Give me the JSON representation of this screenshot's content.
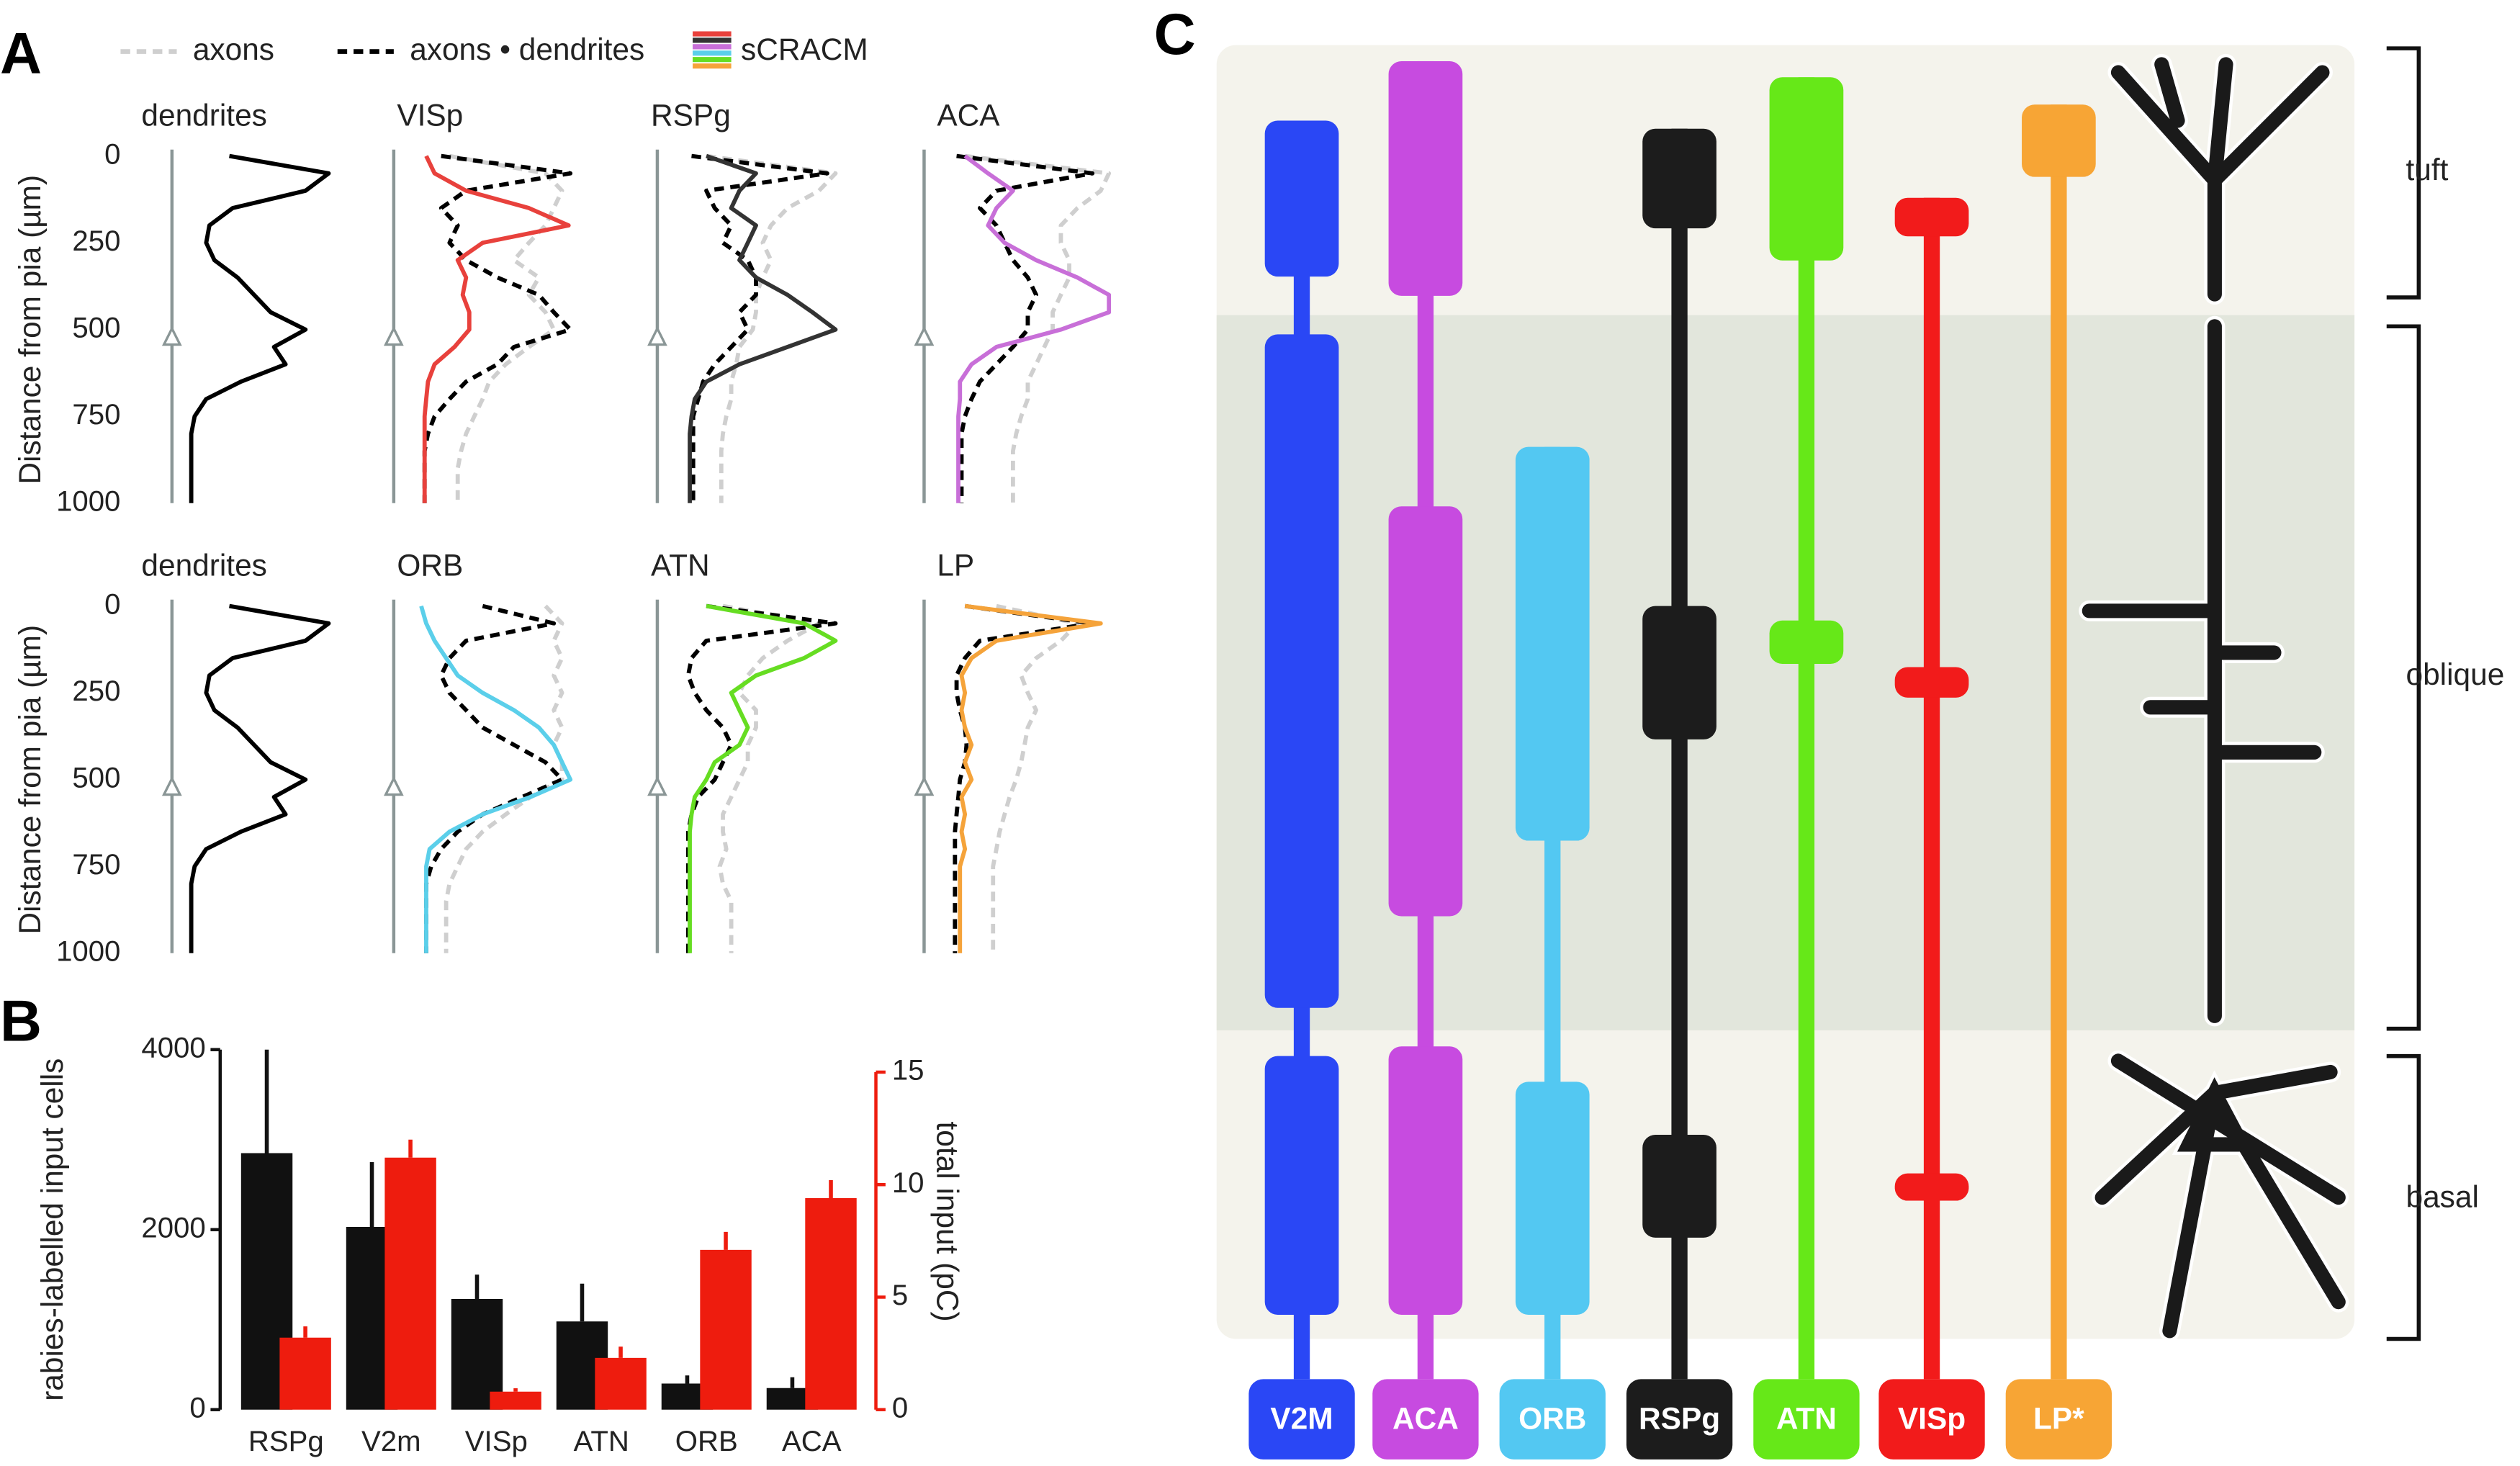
{
  "panel_labels": [
    "A",
    "B",
    "C"
  ],
  "legend": [
    {
      "name": "axons",
      "color": "#cfcfcf",
      "dash": true
    },
    {
      "name": "axons • dendrites",
      "color": "#000000",
      "dash": true
    },
    {
      "name": "sCRACM",
      "colors": [
        "#e8413c",
        "#333333",
        "#c86fd8",
        "#5bcfea",
        "#66dd22",
        "#f5a33a"
      ]
    }
  ],
  "chart_data": [
    {
      "type": "profile",
      "title": "dendrites",
      "title_color": "#333333",
      "xlim": [
        0,
        1
      ],
      "ylim": [
        0,
        1000
      ],
      "yticks": [
        0,
        250,
        500,
        750,
        1000
      ],
      "ylabel": "Distance from pia (µm)",
      "y": [
        0,
        50,
        100,
        150,
        200,
        250,
        300,
        350,
        400,
        450,
        500,
        550,
        600,
        650,
        700,
        750,
        800,
        850,
        900,
        950,
        1000
      ],
      "series": [
        {
          "color": "#000000",
          "dash": false,
          "values": [
            0.23,
            0.83,
            0.69,
            0.25,
            0.11,
            0.09,
            0.14,
            0.28,
            0.38,
            0.48,
            0.69,
            0.5,
            0.57,
            0.3,
            0.09,
            0.02,
            0,
            0,
            0,
            0,
            0
          ]
        }
      ]
    },
    {
      "type": "profile",
      "title": "VISp",
      "title_color": "#e8201c",
      "xlim": [
        0,
        1
      ],
      "ylim": [
        0,
        1000
      ],
      "y": [
        0,
        50,
        100,
        150,
        200,
        250,
        300,
        350,
        400,
        450,
        500,
        550,
        600,
        650,
        700,
        750,
        800,
        850,
        900,
        950,
        1000
      ],
      "series": [
        {
          "color": "#cfcfcf",
          "dash": true,
          "values": [
            0.22,
            0.8,
            0.9,
            0.85,
            0.8,
            0.7,
            0.61,
            0.76,
            0.7,
            0.8,
            0.85,
            0.7,
            0.56,
            0.46,
            0.42,
            0.37,
            0.32,
            0.29,
            0.27,
            0.27,
            0.27
          ]
        },
        {
          "color": "#000000",
          "dash": true,
          "values": [
            0.17,
            0.95,
            0.32,
            0.17,
            0.27,
            0.22,
            0.32,
            0.51,
            0.76,
            0.85,
            0.95,
            0.61,
            0.51,
            0.32,
            0.22,
            0.13,
            0.09,
            0.07,
            0.07,
            0.07,
            0.07
          ]
        },
        {
          "color": "#e8413c",
          "dash": false,
          "values": [
            0.08,
            0.13,
            0.32,
            0.7,
            0.94,
            0.42,
            0.27,
            0.32,
            0.3,
            0.34,
            0.34,
            0.25,
            0.13,
            0.09,
            0.08,
            0.07,
            0.07,
            0.07,
            0.07,
            0.07,
            0.07
          ]
        }
      ]
    },
    {
      "type": "profile",
      "title": "RSPg",
      "title_color": "#222222",
      "xlim": [
        0,
        1
      ],
      "ylim": [
        0,
        1000
      ],
      "y": [
        0,
        50,
        100,
        150,
        200,
        250,
        300,
        350,
        400,
        450,
        500,
        550,
        600,
        650,
        700,
        750,
        800,
        850,
        900,
        950,
        1000
      ],
      "series": [
        {
          "color": "#cfcfcf",
          "dash": true,
          "values": [
            0.18,
            0.96,
            0.86,
            0.67,
            0.57,
            0.52,
            0.57,
            0.52,
            0.48,
            0.48,
            0.46,
            0.38,
            0.36,
            0.33,
            0.33,
            0.3,
            0.28,
            0.27,
            0.27,
            0.27,
            0.27
          ]
        },
        {
          "color": "#000000",
          "dash": true,
          "values": [
            0.09,
            0.91,
            0.18,
            0.23,
            0.33,
            0.28,
            0.43,
            0.48,
            0.48,
            0.38,
            0.43,
            0.33,
            0.23,
            0.16,
            0.13,
            0.1,
            0.1,
            0.1,
            0.1,
            0.1,
            0.1
          ]
        },
        {
          "color": "#333333",
          "dash": false,
          "values": [
            0.18,
            0.48,
            0.38,
            0.33,
            0.48,
            0.43,
            0.38,
            0.48,
            0.67,
            0.82,
            0.96,
            0.67,
            0.38,
            0.18,
            0.11,
            0.09,
            0.08,
            0.08,
            0.08,
            0.08,
            0.08
          ]
        }
      ]
    },
    {
      "type": "profile",
      "title": "ACA",
      "title_color": "#c86fd8",
      "xlim": [
        0,
        1
      ],
      "ylim": [
        0,
        1000
      ],
      "y": [
        0,
        50,
        100,
        150,
        200,
        250,
        300,
        350,
        400,
        450,
        500,
        550,
        600,
        650,
        700,
        750,
        800,
        850,
        900,
        950,
        1000
      ],
      "series": [
        {
          "color": "#cfcfcf",
          "dash": true,
          "values": [
            0.13,
            1,
            0.95,
            0.81,
            0.71,
            0.71,
            0.76,
            0.76,
            0.71,
            0.66,
            0.66,
            0.61,
            0.56,
            0.51,
            0.51,
            0.47,
            0.44,
            0.42,
            0.42,
            0.42,
            0.42
          ]
        },
        {
          "color": "#000000",
          "dash": true,
          "values": [
            0.08,
            0.9,
            0.32,
            0.22,
            0.32,
            0.37,
            0.42,
            0.51,
            0.56,
            0.51,
            0.51,
            0.42,
            0.32,
            0.22,
            0.17,
            0.13,
            0.11,
            0.11,
            0.11,
            0.11,
            0.11
          ]
        },
        {
          "color": "#c86fd8",
          "dash": false,
          "values": [
            0.13,
            0.27,
            0.42,
            0.32,
            0.27,
            0.37,
            0.56,
            0.81,
            1,
            1,
            0.71,
            0.32,
            0.17,
            0.1,
            0.1,
            0.09,
            0.09,
            0.09,
            0.09,
            0.09,
            0.09
          ]
        }
      ]
    },
    {
      "type": "profile",
      "title": "dendrites",
      "title_color": "#333333",
      "xlim": [
        0,
        1
      ],
      "ylim": [
        0,
        1000
      ],
      "yticks": [
        0,
        250,
        500,
        750,
        1000
      ],
      "ylabel": "Distance from pia (µm)",
      "y": [
        0,
        50,
        100,
        150,
        200,
        250,
        300,
        350,
        400,
        450,
        500,
        550,
        600,
        650,
        700,
        750,
        800,
        850,
        900,
        950,
        1000
      ],
      "series": [
        {
          "color": "#000000",
          "dash": false,
          "values": [
            0.23,
            0.83,
            0.69,
            0.25,
            0.11,
            0.09,
            0.14,
            0.28,
            0.38,
            0.48,
            0.69,
            0.5,
            0.57,
            0.3,
            0.09,
            0.02,
            0,
            0,
            0,
            0,
            0
          ]
        }
      ]
    },
    {
      "type": "profile",
      "title": "ORB",
      "title_color": "#4fc6e6",
      "xlim": [
        0,
        1
      ],
      "ylim": [
        0,
        1000
      ],
      "y": [
        0,
        50,
        100,
        150,
        200,
        250,
        300,
        350,
        400,
        450,
        500,
        550,
        600,
        650,
        700,
        750,
        800,
        850,
        900,
        950,
        1000
      ],
      "series": [
        {
          "color": "#cfcfcf",
          "dash": true,
          "values": [
            0.8,
            0.9,
            0.85,
            0.9,
            0.85,
            0.9,
            0.85,
            0.9,
            0.85,
            0.9,
            0.9,
            0.71,
            0.56,
            0.42,
            0.32,
            0.27,
            0.22,
            0.2,
            0.2,
            0.2,
            0.2
          ]
        },
        {
          "color": "#000000",
          "dash": true,
          "values": [
            0.42,
            0.85,
            0.32,
            0.22,
            0.17,
            0.22,
            0.32,
            0.42,
            0.61,
            0.8,
            0.9,
            0.66,
            0.42,
            0.27,
            0.17,
            0.11,
            0.08,
            0.08,
            0.08,
            0.08,
            0.08
          ]
        },
        {
          "color": "#5bcfea",
          "dash": false,
          "values": [
            0.05,
            0.08,
            0.13,
            0.2,
            0.27,
            0.42,
            0.61,
            0.76,
            0.85,
            0.9,
            0.95,
            0.71,
            0.42,
            0.22,
            0.1,
            0.08,
            0.08,
            0.08,
            0.08,
            0.08,
            0.08
          ]
        }
      ]
    },
    {
      "type": "profile",
      "title": "ATN",
      "title_color": "#55cc11",
      "xlim": [
        0,
        1
      ],
      "ylim": [
        0,
        1000
      ],
      "y": [
        0,
        50,
        100,
        150,
        200,
        250,
        300,
        350,
        400,
        450,
        500,
        550,
        600,
        650,
        700,
        750,
        800,
        850,
        900,
        950,
        1000
      ],
      "series": [
        {
          "color": "#cfcfcf",
          "dash": true,
          "values": [
            0.28,
            0.86,
            0.67,
            0.52,
            0.43,
            0.38,
            0.48,
            0.48,
            0.43,
            0.43,
            0.38,
            0.33,
            0.28,
            0.28,
            0.3,
            0.26,
            0.28,
            0.33,
            0.33,
            0.33,
            0.33
          ]
        },
        {
          "color": "#000000",
          "dash": true,
          "values": [
            0.18,
            0.96,
            0.18,
            0.09,
            0.07,
            0.11,
            0.18,
            0.28,
            0.33,
            0.28,
            0.23,
            0.13,
            0.09,
            0.07,
            0.07,
            0.07,
            0.07,
            0.07,
            0.07,
            0.07,
            0.07
          ]
        },
        {
          "color": "#66dd22",
          "dash": false,
          "values": [
            0.18,
            0.77,
            0.96,
            0.77,
            0.48,
            0.33,
            0.38,
            0.43,
            0.38,
            0.23,
            0.18,
            0.11,
            0.09,
            0.08,
            0.08,
            0.08,
            0.08,
            0.08,
            0.08,
            0.08,
            0.08
          ]
        }
      ]
    },
    {
      "type": "profile",
      "title": "LP",
      "title_color": "#f5a33a",
      "xlim": [
        0,
        1
      ],
      "ylim": [
        0,
        1000
      ],
      "y": [
        0,
        50,
        100,
        150,
        200,
        250,
        300,
        350,
        400,
        450,
        500,
        550,
        600,
        650,
        700,
        750,
        800,
        850,
        900,
        950,
        1000
      ],
      "series": [
        {
          "color": "#cfcfcf",
          "dash": true,
          "values": [
            0.32,
            0.81,
            0.71,
            0.56,
            0.47,
            0.51,
            0.56,
            0.51,
            0.49,
            0.47,
            0.44,
            0.4,
            0.37,
            0.34,
            0.32,
            0.3,
            0.3,
            0.3,
            0.3,
            0.3,
            0.3
          ]
        },
        {
          "color": "#000000",
          "dash": true,
          "values": [
            0.13,
            0.9,
            0.22,
            0.13,
            0.08,
            0.08,
            0.1,
            0.13,
            0.14,
            0.13,
            0.1,
            0.09,
            0.08,
            0.07,
            0.07,
            0.07,
            0.07,
            0.07,
            0.07,
            0.07,
            0.07
          ]
        },
        {
          "color": "#f5a33a",
          "dash": false,
          "values": [
            0.13,
            0.95,
            0.32,
            0.17,
            0.11,
            0.13,
            0.11,
            0.13,
            0.17,
            0.13,
            0.17,
            0.11,
            0.13,
            0.11,
            0.13,
            0.1,
            0.1,
            0.1,
            0.1,
            0.1,
            0.1
          ]
        }
      ]
    },
    {
      "type": "bar",
      "categories": [
        "RSPg",
        "V2m",
        "VISp",
        "ATN",
        "ORB",
        "ACA"
      ],
      "ylim": [
        0,
        4000
      ],
      "yticks": [
        0,
        2000,
        4000
      ],
      "ylabel": "rabies-labelled input cells",
      "y2lim": [
        0,
        15
      ],
      "y2ticks": [
        0,
        5,
        10,
        15
      ],
      "y2label": "total input (pC)",
      "y2color": "#ee1c0e",
      "series": [
        {
          "color": "#111111",
          "values": [
            2850,
            2030,
            1230,
            980,
            290,
            240
          ],
          "errors": [
            1150,
            720,
            270,
            420,
            90,
            120
          ]
        },
        {
          "color": "#ee1c0e",
          "axis": "y2",
          "values": [
            3.2,
            11.2,
            0.8,
            2.3,
            7.1,
            9.4
          ],
          "errors": [
            0.5,
            0.8,
            0.15,
            0.5,
            0.8,
            0.8
          ]
        }
      ]
    }
  ],
  "diagram": {
    "columns": [
      {
        "label": "V2M",
        "color": "#2a47f5"
      },
      {
        "label": "ACA",
        "color": "#c74be0"
      },
      {
        "label": "ORB",
        "color": "#53c8f2"
      },
      {
        "label": "RSPg",
        "color": "#1c1c1c"
      },
      {
        "label": "ATN",
        "color": "#66e818"
      },
      {
        "label": "VISp",
        "color": "#f21b1b"
      },
      {
        "label": "LP*",
        "color": "#f7a535"
      }
    ],
    "regions": [
      "tuft",
      "oblique",
      "basal"
    ]
  }
}
